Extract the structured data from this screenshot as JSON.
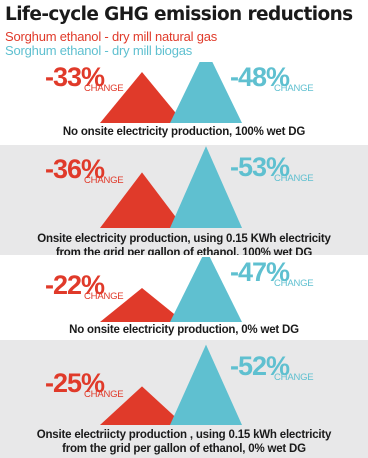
{
  "title": "Life-cycle GHG emission reductions",
  "legend": [
    {
      "label": "Sorghum ethanol - dry mill natural gas",
      "color": "#e03a2a"
    },
    {
      "label": "Sorghum ethanol - dry mill biogas",
      "color": "#5fc0d0"
    }
  ],
  "chart_data": {
    "type": "bar",
    "title": "Life-cycle GHG emission reductions",
    "xlabel": "",
    "ylabel": "",
    "unit": "%",
    "categories": [
      "No onsite electricity production, 100% wet DG",
      "Onsite electricity production, using 0.15 KWh electricity from the grid per gallon of ethanol, 100% wet DG",
      "No onsite electricity production, 0% wet DG",
      "Onsite electriicty production , using 0.15 kWh electricity from the grid per gallon of ethanol, 0% wet DG"
    ],
    "series": [
      {
        "name": "Sorghum ethanol - dry mill natural gas",
        "color": "#e03a2a",
        "values": [
          -33,
          -36,
          -22,
          -25
        ]
      },
      {
        "name": "Sorghum ethanol - dry mill biogas",
        "color": "#5fc0d0",
        "values": [
          -48,
          -53,
          -47,
          -52
        ]
      }
    ],
    "panels": [
      {
        "red_label": "-33%",
        "blue_label": "-48%",
        "change_label": "CHANGE",
        "caption": [
          "No onsite electricity production, 100% wet DG"
        ]
      },
      {
        "red_label": "-36%",
        "blue_label": "-53%",
        "change_label": "CHANGE",
        "caption": [
          "Onsite electricity production, using 0.15 KWh electricity",
          "from the grid per gallon of ethanol, 100% wet DG"
        ]
      },
      {
        "red_label": "-22%",
        "blue_label": "-47%",
        "change_label": "CHANGE",
        "caption": [
          "No onsite electricity production, 0% wet DG"
        ]
      },
      {
        "red_label": "-25%",
        "blue_label": "-52%",
        "change_label": "CHANGE",
        "caption": [
          "Onsite electriicty production , using 0.15 kWh electricity",
          "from the grid per gallon of ethanol, 0% wet DG"
        ]
      }
    ],
    "grid": false,
    "legend_position": "top-left"
  }
}
